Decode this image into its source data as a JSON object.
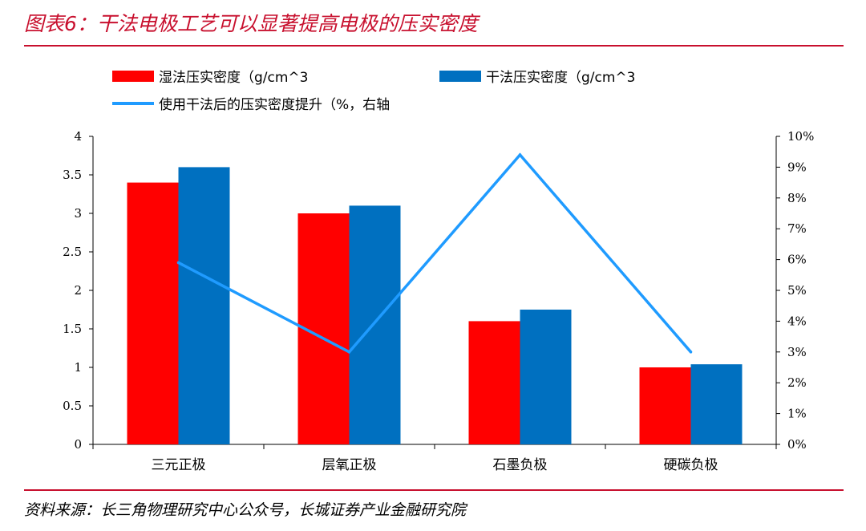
{
  "title": "图表6：干法电极工艺可以显著提高电极的压实密度",
  "source": "资料来源：长三角物理研究中心公众号，长城证券产业金融研究院",
  "colors": {
    "accent": "#c8102e",
    "wet": "#ff0000",
    "dry": "#0070c0",
    "line": "#1f9bff"
  },
  "chart_data": {
    "type": "bar",
    "categories": [
      "三元正极",
      "层氧正极",
      "石墨负极",
      "硬碳负极"
    ],
    "series": [
      {
        "name": "湿法压实密度（g/cm^3",
        "kind": "bar",
        "axis": "left",
        "values": [
          3.4,
          3.0,
          1.6,
          1.0
        ]
      },
      {
        "name": "干法压实密度（g/cm^3",
        "kind": "bar",
        "axis": "left",
        "values": [
          3.6,
          3.1,
          1.75,
          1.04
        ]
      },
      {
        "name": "使用干法后的压实密度提升（%，右轴",
        "kind": "line",
        "axis": "right",
        "values": [
          5.9,
          3.0,
          9.4,
          3.0
        ]
      }
    ],
    "left_axis": {
      "ylim": [
        0,
        4
      ],
      "ticks": [
        "0",
        "0.5",
        "1",
        "1.5",
        "2",
        "2.5",
        "3",
        "3.5",
        "4"
      ]
    },
    "right_axis": {
      "ylim": [
        0,
        10
      ],
      "ticks": [
        "0%",
        "1%",
        "2%",
        "3%",
        "4%",
        "5%",
        "6%",
        "7%",
        "8%",
        "9%",
        "10%"
      ]
    },
    "legend_position": "top"
  }
}
